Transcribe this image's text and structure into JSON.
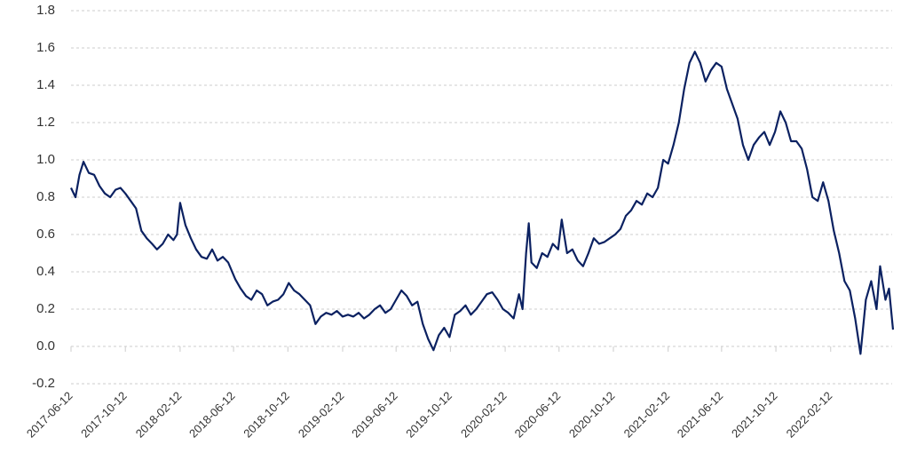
{
  "chart_data": {
    "type": "line",
    "color": "#0b2161",
    "grid": true,
    "xlim": [
      "2017-06-12",
      "2022-07-06"
    ],
    "xticks": [
      "2017-06-12",
      "2017-10-12",
      "2018-02-12",
      "2018-06-12",
      "2018-10-12",
      "2019-02-12",
      "2019-06-12",
      "2019-10-12",
      "2020-02-12",
      "2020-06-12",
      "2020-10-12",
      "2021-02-12",
      "2021-06-12",
      "2021-10-12",
      "2022-02-12"
    ],
    "ylim": [
      -0.2,
      1.8
    ],
    "yticks": [
      -0.2,
      {
        "value": 0,
        "label": "0.0"
      },
      0.2,
      0.4,
      0.6,
      0.8,
      {
        "value": 1,
        "label": "1.0"
      },
      1.2,
      1.4,
      1.6,
      1.8
    ],
    "x": [
      "2017-06-12",
      "2017-06-22",
      "2017-07-01",
      "2017-07-10",
      "2017-07-22",
      "2017-08-03",
      "2017-08-15",
      "2017-08-27",
      "2017-09-08",
      "2017-09-20",
      "2017-10-01",
      "2017-10-12",
      "2017-10-24",
      "2017-11-05",
      "2017-11-17",
      "2017-11-29",
      "2017-12-11",
      "2017-12-22",
      "2018-01-04",
      "2018-01-16",
      "2018-01-28",
      "2018-02-05",
      "2018-02-12",
      "2018-02-24",
      "2018-03-08",
      "2018-03-20",
      "2018-04-01",
      "2018-04-13",
      "2018-04-25",
      "2018-05-07",
      "2018-05-19",
      "2018-05-31",
      "2018-06-16",
      "2018-06-28",
      "2018-07-10",
      "2018-07-22",
      "2018-08-03",
      "2018-08-15",
      "2018-08-27",
      "2018-09-08",
      "2018-09-20",
      "2018-10-02",
      "2018-10-14",
      "2018-10-26",
      "2018-11-07",
      "2018-11-19",
      "2018-12-01",
      "2018-12-13",
      "2018-12-25",
      "2019-01-06",
      "2019-01-18",
      "2019-01-30",
      "2019-02-12",
      "2019-02-24",
      "2019-03-08",
      "2019-03-20",
      "2019-04-01",
      "2019-04-13",
      "2019-04-25",
      "2019-05-07",
      "2019-05-19",
      "2019-05-31",
      "2019-06-12",
      "2019-06-24",
      "2019-07-06",
      "2019-07-18",
      "2019-07-30",
      "2019-08-11",
      "2019-08-23",
      "2019-09-04",
      "2019-09-16",
      "2019-09-28",
      "2019-10-10",
      "2019-10-22",
      "2019-11-03",
      "2019-11-15",
      "2019-11-27",
      "2019-12-09",
      "2019-12-21",
      "2020-01-02",
      "2020-01-14",
      "2020-01-26",
      "2020-02-07",
      "2020-02-19",
      "2020-03-02",
      "2020-03-14",
      "2020-03-22",
      "2020-03-30",
      "2020-04-05",
      "2020-04-11",
      "2020-04-23",
      "2020-05-05",
      "2020-05-17",
      "2020-05-29",
      "2020-06-10",
      "2020-06-18",
      "2020-06-30",
      "2020-07-12",
      "2020-07-24",
      "2020-08-05",
      "2020-08-17",
      "2020-08-29",
      "2020-09-10",
      "2020-09-22",
      "2020-10-04",
      "2020-10-16",
      "2020-10-28",
      "2020-11-09",
      "2020-11-21",
      "2020-12-03",
      "2020-12-15",
      "2020-12-27",
      "2021-01-08",
      "2021-01-20",
      "2021-02-01",
      "2021-02-12",
      "2021-02-24",
      "2021-03-08",
      "2021-03-20",
      "2021-04-01",
      "2021-04-13",
      "2021-04-25",
      "2021-05-07",
      "2021-05-19",
      "2021-05-31",
      "2021-06-12",
      "2021-06-24",
      "2021-07-06",
      "2021-07-18",
      "2021-07-30",
      "2021-08-11",
      "2021-08-23",
      "2021-09-04",
      "2021-09-16",
      "2021-09-28",
      "2021-10-10",
      "2021-10-22",
      "2021-11-03",
      "2021-11-15",
      "2021-11-27",
      "2021-12-09",
      "2021-12-21",
      "2022-01-02",
      "2022-01-14",
      "2022-01-26",
      "2022-02-07",
      "2022-02-19",
      "2022-03-03",
      "2022-03-15",
      "2022-03-27",
      "2022-04-08",
      "2022-04-20",
      "2022-05-02",
      "2022-05-14",
      "2022-05-26",
      "2022-06-03",
      "2022-06-15",
      "2022-06-23",
      "2022-07-02"
    ],
    "values": [
      0.85,
      0.8,
      0.92,
      0.99,
      0.93,
      0.92,
      0.86,
      0.82,
      0.8,
      0.84,
      0.85,
      0.82,
      0.78,
      0.74,
      0.62,
      0.58,
      0.55,
      0.52,
      0.55,
      0.6,
      0.57,
      0.6,
      0.77,
      0.65,
      0.58,
      0.52,
      0.48,
      0.47,
      0.52,
      0.46,
      0.48,
      0.45,
      0.36,
      0.31,
      0.27,
      0.25,
      0.3,
      0.28,
      0.22,
      0.24,
      0.25,
      0.28,
      0.34,
      0.3,
      0.28,
      0.25,
      0.22,
      0.12,
      0.16,
      0.18,
      0.17,
      0.19,
      0.16,
      0.17,
      0.16,
      0.18,
      0.15,
      0.17,
      0.2,
      0.22,
      0.18,
      0.2,
      0.25,
      0.3,
      0.27,
      0.22,
      0.24,
      0.12,
      0.04,
      -0.02,
      0.06,
      0.1,
      0.05,
      0.17,
      0.19,
      0.22,
      0.17,
      0.2,
      0.24,
      0.28,
      0.29,
      0.25,
      0.2,
      0.18,
      0.15,
      0.28,
      0.2,
      0.5,
      0.66,
      0.45,
      0.42,
      0.5,
      0.48,
      0.55,
      0.52,
      0.68,
      0.5,
      0.52,
      0.46,
      0.43,
      0.5,
      0.58,
      0.55,
      0.56,
      0.58,
      0.6,
      0.63,
      0.7,
      0.73,
      0.78,
      0.76,
      0.82,
      0.8,
      0.85,
      1.0,
      0.98,
      1.08,
      1.2,
      1.38,
      1.52,
      1.58,
      1.52,
      1.42,
      1.48,
      1.52,
      1.5,
      1.38,
      1.3,
      1.22,
      1.08,
      1.0,
      1.08,
      1.12,
      1.15,
      1.08,
      1.15,
      1.26,
      1.2,
      1.1,
      1.1,
      1.06,
      0.95,
      0.8,
      0.78,
      0.88,
      0.78,
      0.62,
      0.5,
      0.35,
      0.3,
      0.15,
      -0.04,
      0.25,
      0.35,
      0.2,
      0.43,
      0.25,
      0.31,
      0.09
    ]
  }
}
